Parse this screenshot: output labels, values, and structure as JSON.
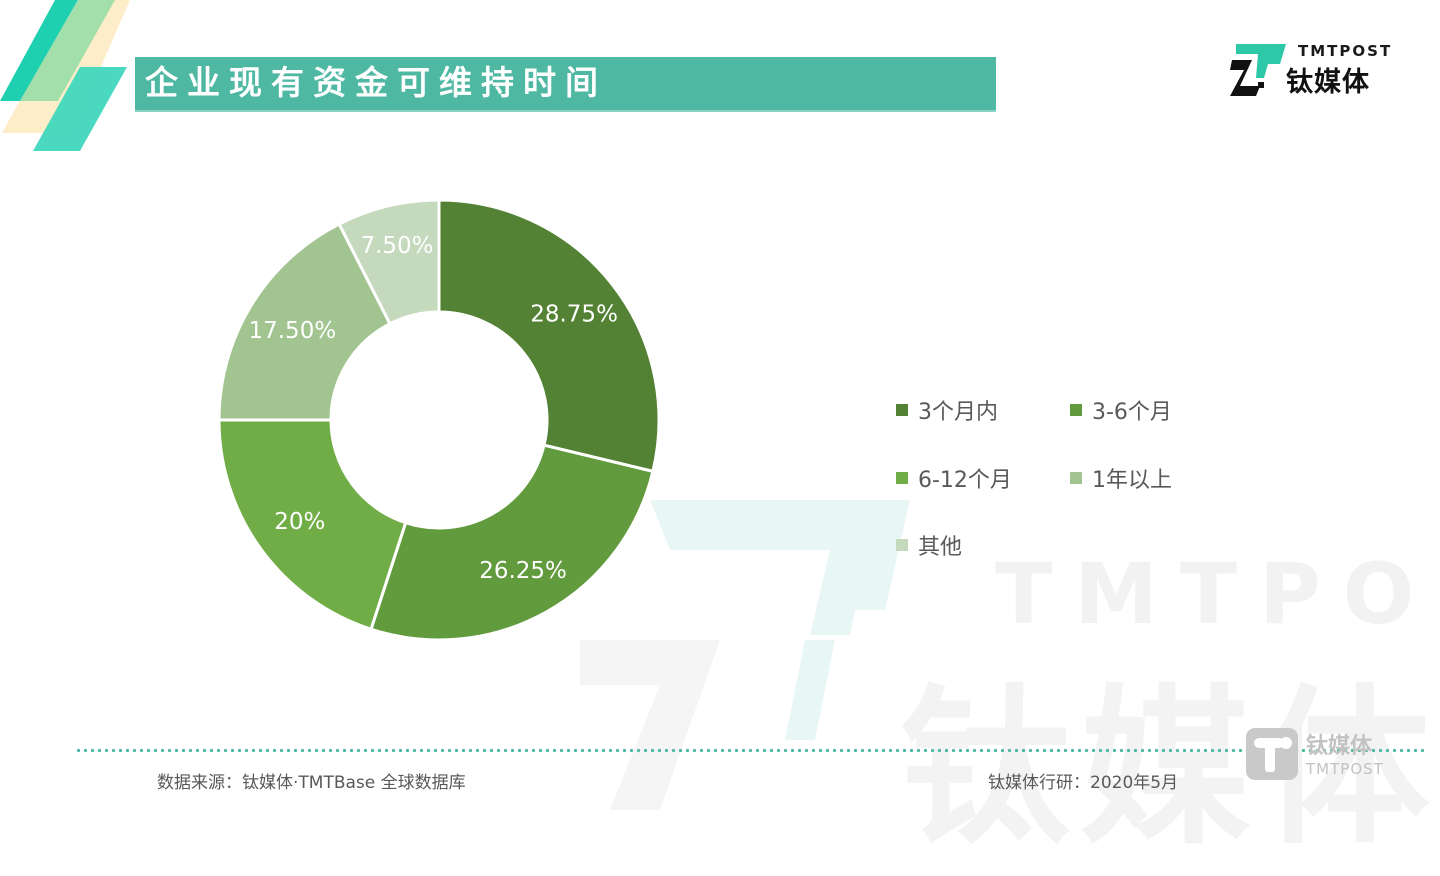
{
  "header": {
    "title": "企业现有资金可维持时间",
    "title_bar_color": "#4fb8a3"
  },
  "logo": {
    "en": "TMTPOST",
    "cn": "钛媒体",
    "icon": "tmtpost-logo-icon",
    "accent": "#2cc8a8"
  },
  "watermark": {
    "en": "TMTPOST",
    "cn": "钛媒体"
  },
  "legend": {
    "items": [
      {
        "label": "3个月内",
        "color": "#548235"
      },
      {
        "label": "3-6个月",
        "color": "#629a3e"
      },
      {
        "label": "6-12个月",
        "color": "#70ad47"
      },
      {
        "label": "1年以上",
        "color": "#a1c490"
      },
      {
        "label": "其他",
        "color": "#c5d9bc"
      }
    ]
  },
  "chart_data": {
    "type": "pie",
    "subtype": "donut",
    "title": "企业现有资金可维持时间",
    "categories": [
      "3个月内",
      "3-6个月",
      "6-12个月",
      "1年以上",
      "其他"
    ],
    "values": [
      28.75,
      26.25,
      20,
      17.5,
      7.5
    ],
    "labels": [
      "28.75%",
      "26.25%",
      "20%",
      "17.50%",
      "7.50%"
    ],
    "colors": [
      "#548235",
      "#629a3e",
      "#70ad47",
      "#a1c490",
      "#c5d9bc"
    ],
    "unit": "%",
    "legend_position": "right",
    "start_angle": "12 o'clock",
    "direction": "clockwise"
  },
  "footer": {
    "source": "数据来源：钛媒体·TMTBase 全球数据库",
    "date": "钛媒体行研：2020年5月",
    "logo_cn": "钛媒体",
    "logo_en": "TMTPOST"
  }
}
